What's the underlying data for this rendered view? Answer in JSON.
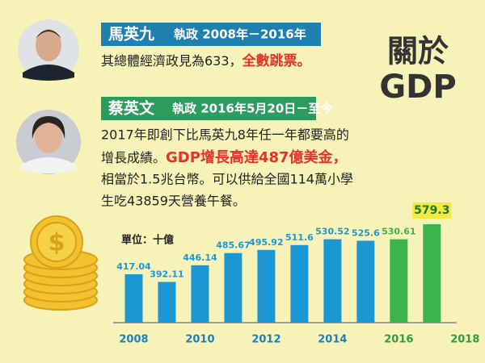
{
  "heading": [
    "關於",
    "GDP"
  ],
  "ma": {
    "name": "馬英九",
    "term": "執政 2008年－2016年",
    "text": "其總體經濟政見為633，",
    "highlight": "全數跳票。"
  },
  "tsai": {
    "name": "蔡英文",
    "term": "執政 2016年5月20日－至今",
    "line1": "2017年即創下比馬英九8年任一年都要高的",
    "line2": "增長成績。",
    "highlight": "GDP增長高達487億美金，",
    "line3": "相當於1.5兆台幣。可以供給全國114萬小學",
    "line4": "生吃43859天營養午餐。"
  },
  "chart_data": {
    "type": "bar",
    "unit_label": "單位：十億",
    "x": [
      2008,
      2009,
      2010,
      2011,
      2012,
      2013,
      2014,
      2015,
      2016,
      2017
    ],
    "values": [
      417.04,
      392.11,
      446.14,
      485.67,
      495.92,
      511.6,
      530.52,
      525.6,
      530.61,
      579.3
    ],
    "colors": [
      "#1b98d3",
      "#1b98d3",
      "#1b98d3",
      "#1b98d3",
      "#1b98d3",
      "#1b98d3",
      "#1b98d3",
      "#1b98d3",
      "#3bb54a",
      "#3bb54a"
    ],
    "xlim": [
      2007.5,
      2017.7
    ],
    "ylim": [
      260,
      600
    ],
    "xticks": [
      2008,
      2010,
      2012,
      2014,
      2016,
      2018
    ],
    "xtick_colors": [
      "#1b7fc0",
      "#1b7fc0",
      "#1b7fc0",
      "#1b7fc0",
      "#2f9d45",
      "#2f9d45"
    ]
  }
}
